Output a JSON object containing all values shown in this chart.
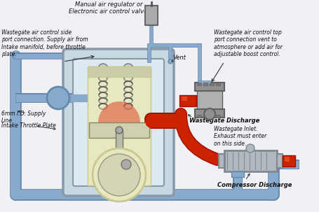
{
  "bg_color": "#f0f0f5",
  "labels": {
    "top_center": "Manual air regulator or\nElectronic air control valve.",
    "top_left": "Wastegate air control side\nport connection. Supply air from\nIntake manifold, before throttle\nplate.",
    "top_right": "Wastegate air control top\nport connection vent to\natmosphere or add air for\nadjustable boost control.",
    "vent": "Vent",
    "supply_line": "6mm I.D. Supply\nLine",
    "intake": "Intake Throttle Plate",
    "wastegate_discharge": "Wastegate Discharge",
    "wastegate_inlet": "Wastegate Inlet.\nExhaust must enter\non this side.",
    "compressor_discharge": "Compressor Discharge"
  },
  "colors": {
    "blue_tube": "#88aacc",
    "blue_tube_dark": "#6688aa",
    "red_tube": "#cc2200",
    "red_tube_dark": "#991100",
    "engine_bg": "#c8d8e0",
    "engine_border": "#8899aa",
    "engine_inner_bg": "#dde8f0",
    "liner_color": "#e8e8c0",
    "liner_dark": "#c8c890",
    "piston_color": "#d0d0b0",
    "wg_body": "#909090",
    "wg_dark": "#606060",
    "comp_body": "#b0b8c0",
    "comp_dark": "#808890",
    "text_color": "#111111",
    "arrow_color": "#222222",
    "white": "#ffffff",
    "spring_color": "#555555"
  }
}
